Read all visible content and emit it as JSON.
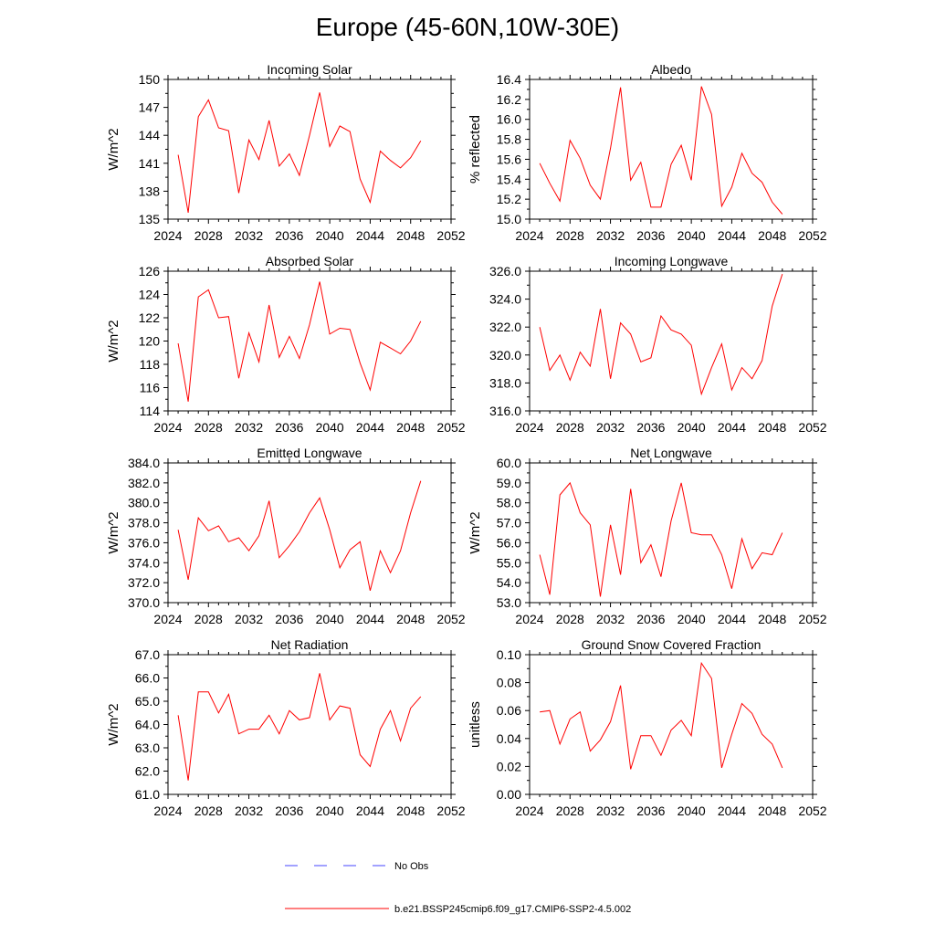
{
  "page_title": "Europe (45-60N,10W-30E)",
  "colors": {
    "model_line": "#ff0000",
    "obs_line": "#4444ff",
    "axis": "#000000"
  },
  "legend": {
    "obs_label": "No Obs",
    "model_label": "b.e21.BSSP245cmip6.f09_g17.CMIP6-SSP2-4.5.002"
  },
  "chart_data": [
    {
      "type": "line",
      "title": "Incoming Solar",
      "ylabel": "W/m^2",
      "xlim": [
        2024,
        2052
      ],
      "ylim": [
        135,
        150
      ],
      "yticks": [
        "135",
        "138",
        "141",
        "144",
        "147",
        "150"
      ],
      "xticks": [
        "2024",
        "2028",
        "2032",
        "2036",
        "2040",
        "2044",
        "2048",
        "2052"
      ],
      "x": [
        2025,
        2026,
        2027,
        2028,
        2029,
        2030,
        2031,
        2032,
        2033,
        2034,
        2035,
        2036,
        2037,
        2038,
        2039,
        2040,
        2041,
        2042,
        2043,
        2044,
        2045,
        2046,
        2047,
        2048,
        2049
      ],
      "series": [
        {
          "values": [
            141.9,
            135.7,
            146.0,
            147.8,
            144.8,
            144.5,
            137.8,
            143.5,
            141.4,
            145.6,
            140.7,
            142.0,
            139.7,
            144.0,
            148.6,
            142.8,
            145.0,
            144.4,
            139.3,
            136.8,
            142.3,
            141.3,
            140.5,
            141.6,
            143.4
          ]
        }
      ]
    },
    {
      "type": "line",
      "title": "Albedo",
      "ylabel": "% reflected",
      "xlim": [
        2024,
        2052
      ],
      "ylim": [
        15.0,
        16.4
      ],
      "yticks": [
        "15.0",
        "15.2",
        "15.4",
        "15.6",
        "15.8",
        "16.0",
        "16.2",
        "16.4"
      ],
      "xticks": [
        "2024",
        "2028",
        "2032",
        "2036",
        "2040",
        "2044",
        "2048",
        "2052"
      ],
      "x": [
        2025,
        2026,
        2027,
        2028,
        2029,
        2030,
        2031,
        2032,
        2033,
        2034,
        2035,
        2036,
        2037,
        2038,
        2039,
        2040,
        2041,
        2042,
        2043,
        2044,
        2045,
        2046,
        2047,
        2048,
        2049
      ],
      "series": [
        {
          "values": [
            15.56,
            15.36,
            15.18,
            15.79,
            15.61,
            15.34,
            15.2,
            15.71,
            16.32,
            15.39,
            15.57,
            15.12,
            15.12,
            15.55,
            15.74,
            15.39,
            16.33,
            16.05,
            15.13,
            15.32,
            15.66,
            15.46,
            15.37,
            15.17,
            15.05
          ]
        }
      ]
    },
    {
      "type": "line",
      "title": "Absorbed Solar",
      "ylabel": "W/m^2",
      "xlim": [
        2024,
        2052
      ],
      "ylim": [
        114,
        126
      ],
      "yticks": [
        "114",
        "116",
        "118",
        "120",
        "122",
        "124",
        "126"
      ],
      "xticks": [
        "2024",
        "2028",
        "2032",
        "2036",
        "2040",
        "2044",
        "2048",
        "2052"
      ],
      "x": [
        2025,
        2026,
        2027,
        2028,
        2029,
        2030,
        2031,
        2032,
        2033,
        2034,
        2035,
        2036,
        2037,
        2038,
        2039,
        2040,
        2041,
        2042,
        2043,
        2044,
        2045,
        2046,
        2047,
        2048,
        2049
      ],
      "series": [
        {
          "values": [
            119.8,
            114.8,
            123.8,
            124.4,
            122.0,
            122.1,
            116.8,
            120.7,
            118.2,
            123.1,
            118.6,
            120.4,
            118.5,
            121.4,
            125.1,
            120.6,
            121.1,
            121.0,
            118.1,
            115.8,
            119.9,
            119.4,
            118.9,
            120.0,
            121.7
          ]
        }
      ]
    },
    {
      "type": "line",
      "title": "Incoming Longwave",
      "ylabel": "",
      "xlim": [
        2024,
        2052
      ],
      "ylim": [
        316.0,
        326.0
      ],
      "yticks": [
        "316.0",
        "318.0",
        "320.0",
        "322.0",
        "324.0",
        "326.0"
      ],
      "xticks": [
        "2024",
        "2028",
        "2032",
        "2036",
        "2040",
        "2044",
        "2048",
        "2052"
      ],
      "x": [
        2025,
        2026,
        2027,
        2028,
        2029,
        2030,
        2031,
        2032,
        2033,
        2034,
        2035,
        2036,
        2037,
        2038,
        2039,
        2040,
        2041,
        2042,
        2043,
        2044,
        2045,
        2046,
        2047,
        2048,
        2049
      ],
      "series": [
        {
          "values": [
            322.0,
            318.9,
            320.0,
            318.2,
            320.2,
            319.2,
            323.3,
            318.3,
            322.3,
            321.5,
            319.5,
            319.8,
            322.8,
            321.8,
            321.5,
            320.7,
            317.2,
            319.1,
            320.8,
            317.5,
            319.1,
            318.3,
            319.6,
            323.5,
            325.8
          ]
        }
      ]
    },
    {
      "type": "line",
      "title": "Emitted Longwave",
      "ylabel": "W/m^2",
      "xlim": [
        2024,
        2052
      ],
      "ylim": [
        370.0,
        384.0
      ],
      "yticks": [
        "370.0",
        "372.0",
        "374.0",
        "376.0",
        "378.0",
        "380.0",
        "382.0",
        "384.0"
      ],
      "xticks": [
        "2024",
        "2028",
        "2032",
        "2036",
        "2040",
        "2044",
        "2048",
        "2052"
      ],
      "x": [
        2025,
        2026,
        2027,
        2028,
        2029,
        2030,
        2031,
        2032,
        2033,
        2034,
        2035,
        2036,
        2037,
        2038,
        2039,
        2040,
        2041,
        2042,
        2043,
        2044,
        2045,
        2046,
        2047,
        2048,
        2049
      ],
      "series": [
        {
          "values": [
            377.3,
            372.3,
            378.5,
            377.2,
            377.7,
            376.1,
            376.5,
            375.2,
            376.7,
            380.2,
            374.5,
            375.7,
            377.1,
            379.0,
            380.5,
            377.3,
            373.5,
            375.3,
            376.1,
            371.2,
            375.2,
            373.0,
            375.2,
            379.0,
            382.2
          ]
        }
      ]
    },
    {
      "type": "line",
      "title": "Net Longwave",
      "ylabel": "W/m^2",
      "xlim": [
        2024,
        2052
      ],
      "ylim": [
        53.0,
        60.0
      ],
      "yticks": [
        "53.0",
        "54.0",
        "55.0",
        "56.0",
        "57.0",
        "58.0",
        "59.0",
        "60.0"
      ],
      "xticks": [
        "2024",
        "2028",
        "2032",
        "2036",
        "2040",
        "2044",
        "2048",
        "2052"
      ],
      "x": [
        2025,
        2026,
        2027,
        2028,
        2029,
        2030,
        2031,
        2032,
        2033,
        2034,
        2035,
        2036,
        2037,
        2038,
        2039,
        2040,
        2041,
        2042,
        2043,
        2044,
        2045,
        2046,
        2047,
        2048,
        2049
      ],
      "series": [
        {
          "values": [
            55.4,
            53.4,
            58.4,
            59.0,
            57.5,
            56.9,
            53.3,
            56.9,
            54.4,
            58.7,
            55.0,
            55.9,
            54.3,
            57.1,
            59.0,
            56.5,
            56.4,
            56.4,
            55.4,
            53.7,
            56.2,
            54.7,
            55.5,
            55.4,
            56.5
          ]
        }
      ]
    },
    {
      "type": "line",
      "title": "Net Radiation",
      "ylabel": "W/m^2",
      "xlim": [
        2024,
        2052
      ],
      "ylim": [
        61.0,
        67.0
      ],
      "yticks": [
        "61.0",
        "62.0",
        "63.0",
        "64.0",
        "65.0",
        "66.0",
        "67.0"
      ],
      "xticks": [
        "2024",
        "2028",
        "2032",
        "2036",
        "2040",
        "2044",
        "2048",
        "2052"
      ],
      "x": [
        2025,
        2026,
        2027,
        2028,
        2029,
        2030,
        2031,
        2032,
        2033,
        2034,
        2035,
        2036,
        2037,
        2038,
        2039,
        2040,
        2041,
        2042,
        2043,
        2044,
        2045,
        2046,
        2047,
        2048,
        2049
      ],
      "series": [
        {
          "values": [
            64.4,
            61.6,
            65.4,
            65.4,
            64.5,
            65.3,
            63.6,
            63.8,
            63.8,
            64.4,
            63.6,
            64.6,
            64.2,
            64.3,
            66.2,
            64.2,
            64.8,
            64.7,
            62.7,
            62.2,
            63.8,
            64.6,
            63.3,
            64.7,
            65.2
          ]
        }
      ]
    },
    {
      "type": "line",
      "title": "Ground Snow Covered Fraction",
      "ylabel": "unitless",
      "xlim": [
        2024,
        2052
      ],
      "ylim": [
        0.0,
        0.1
      ],
      "yticks": [
        "0.00",
        "0.02",
        "0.04",
        "0.06",
        "0.08",
        "0.10"
      ],
      "xticks": [
        "2024",
        "2028",
        "2032",
        "2036",
        "2040",
        "2044",
        "2048",
        "2052"
      ],
      "x": [
        2025,
        2026,
        2027,
        2028,
        2029,
        2030,
        2031,
        2032,
        2033,
        2034,
        2035,
        2036,
        2037,
        2038,
        2039,
        2040,
        2041,
        2042,
        2043,
        2044,
        2045,
        2046,
        2047,
        2048,
        2049
      ],
      "series": [
        {
          "values": [
            0.059,
            0.06,
            0.036,
            0.054,
            0.059,
            0.031,
            0.039,
            0.052,
            0.078,
            0.018,
            0.042,
            0.042,
            0.028,
            0.046,
            0.053,
            0.042,
            0.094,
            0.083,
            0.019,
            0.043,
            0.065,
            0.058,
            0.043,
            0.036,
            0.019
          ]
        }
      ]
    }
  ]
}
